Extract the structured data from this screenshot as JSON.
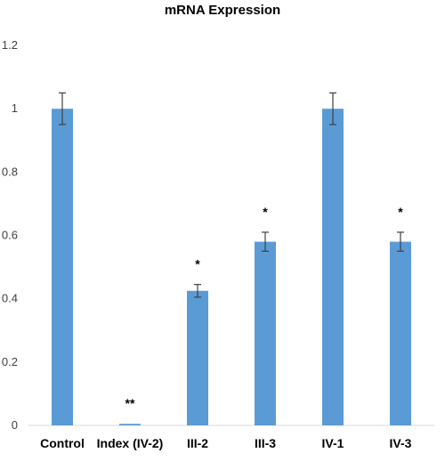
{
  "chart_data": {
    "type": "bar",
    "title": "mRNA Expression",
    "xlabel": "",
    "ylabel": "",
    "ylim": [
      0,
      1.2
    ],
    "yticks": [
      "0",
      "0.2",
      "0.4",
      "0.6",
      "0.8",
      "1",
      "1.2"
    ],
    "grid": false,
    "legend": "none",
    "categories": [
      "Control",
      "Index (IV-2)",
      "III-2",
      "III-3",
      "IV-1",
      "IV-3"
    ],
    "values": [
      1.0,
      0.005,
      0.425,
      0.58,
      1.0,
      0.58
    ],
    "errors": [
      0.05,
      0.0,
      0.02,
      0.03,
      0.05,
      0.03
    ],
    "annotations": [
      "",
      "**",
      "*",
      "*",
      "",
      "*"
    ],
    "bar_color": "#5B9BD5",
    "error_color": "#404040"
  }
}
